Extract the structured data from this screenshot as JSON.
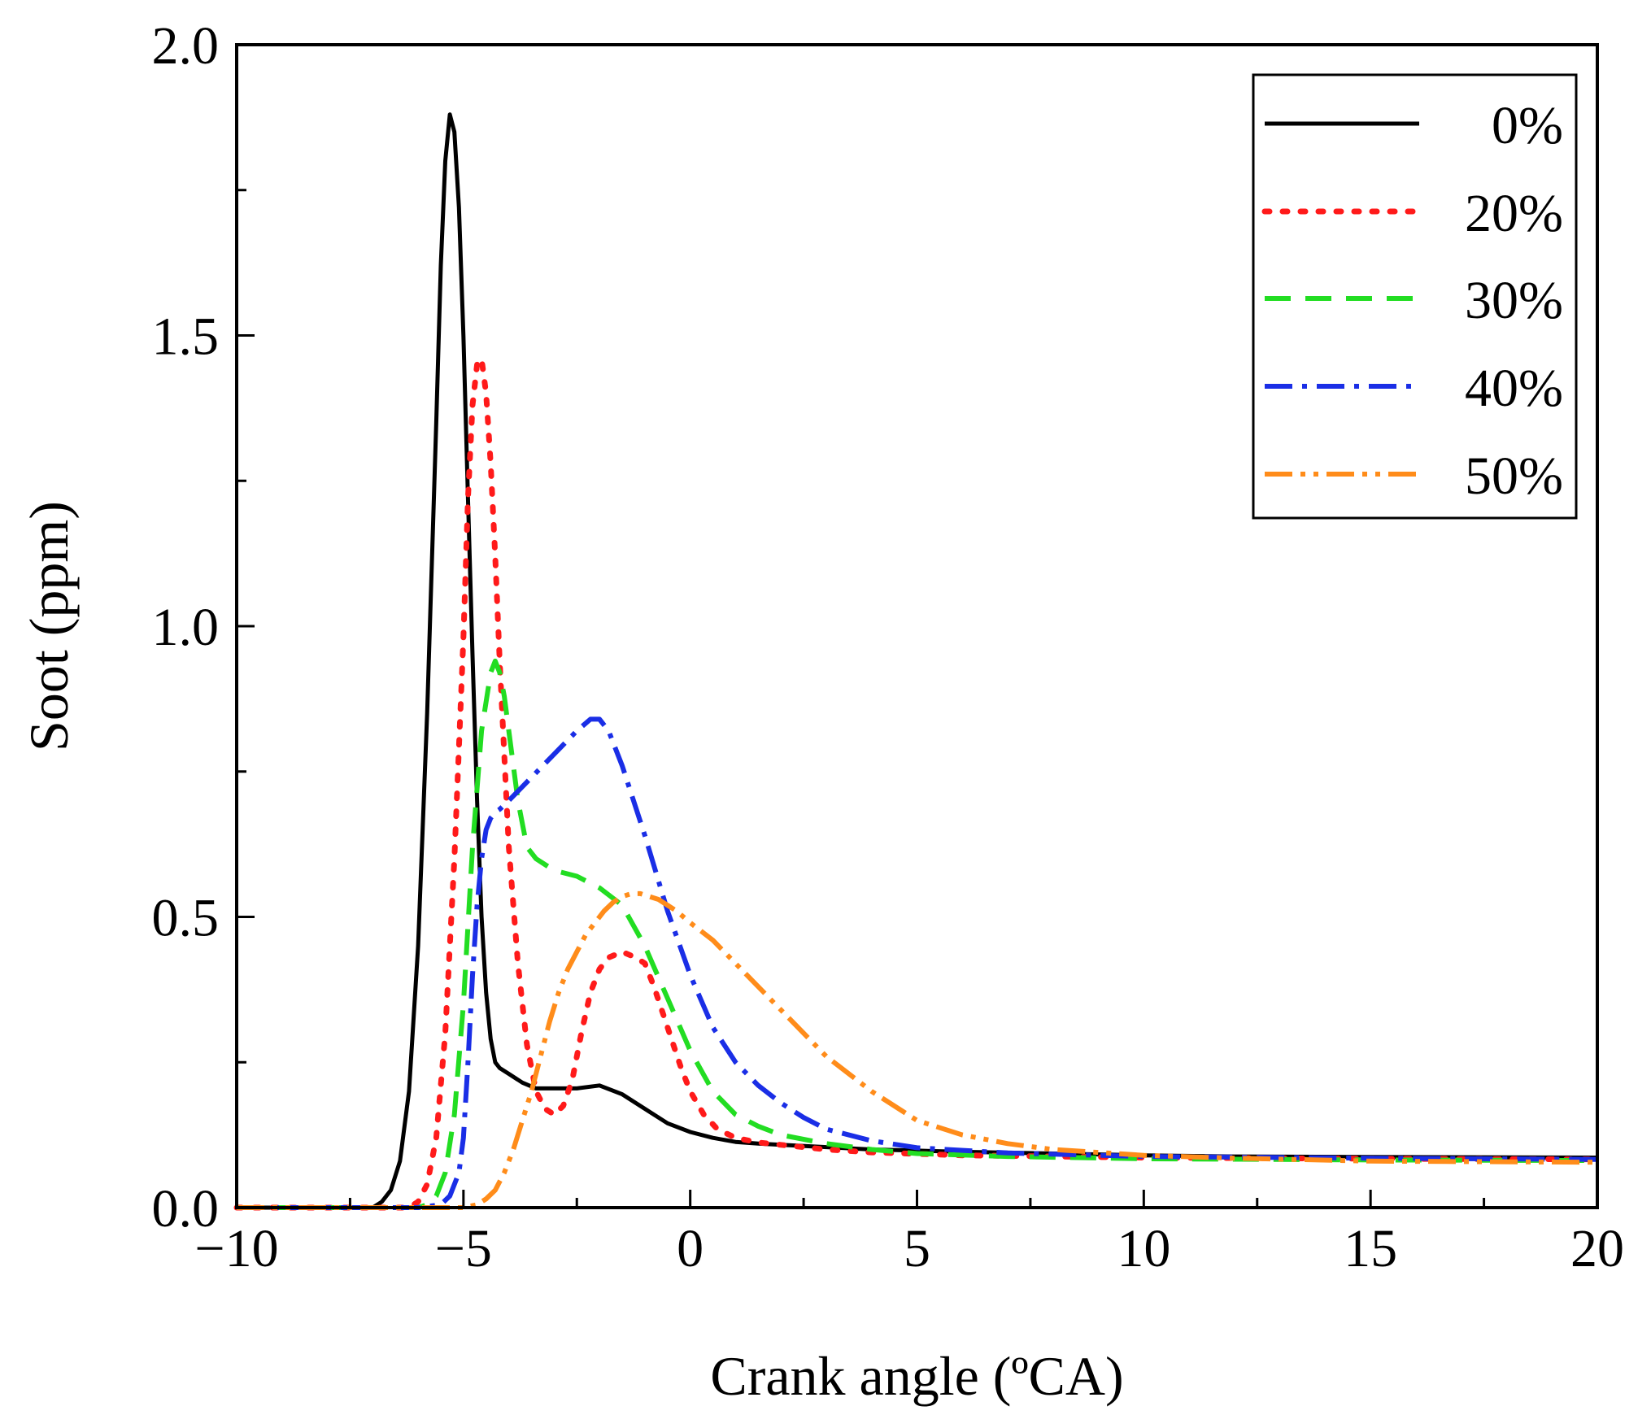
{
  "chart_data": {
    "type": "line",
    "title": "",
    "xlabel": "Crank angle (ºCA)",
    "ylabel": "Soot (ppm)",
    "xlim": [
      -10,
      20
    ],
    "ylim": [
      0.0,
      2.0
    ],
    "x_ticks": [
      -10,
      -5,
      0,
      5,
      10,
      15,
      20
    ],
    "x_tick_labels": [
      "−10",
      "−5",
      "0",
      "5",
      "10",
      "15",
      "20"
    ],
    "y_ticks": [
      0.0,
      0.5,
      1.0,
      1.5,
      2.0
    ],
    "y_tick_labels": [
      "0.0",
      "0.5",
      "1.0",
      "1.5",
      "2.0"
    ],
    "grid": false,
    "legend_position": "top-right",
    "series": [
      {
        "name": "0%",
        "color": "#000000",
        "dash": "solid",
        "x": [
          -10,
          -7.5,
          -7,
          -6.8,
          -6.6,
          -6.4,
          -6.2,
          -6.0,
          -5.8,
          -5.6,
          -5.5,
          -5.4,
          -5.3,
          -5.2,
          -5.1,
          -5.0,
          -4.9,
          -4.8,
          -4.7,
          -4.6,
          -4.5,
          -4.4,
          -4.3,
          -4.2,
          -4.0,
          -3.7,
          -3.4,
          -3.0,
          -2.5,
          -2.0,
          -1.5,
          -1.0,
          -0.5,
          0,
          0.5,
          1,
          1.5,
          2,
          3,
          4,
          5,
          6,
          8,
          10,
          12,
          15,
          20
        ],
        "values": [
          0.0,
          0.0,
          0.0,
          0.01,
          0.03,
          0.08,
          0.2,
          0.45,
          0.85,
          1.35,
          1.62,
          1.8,
          1.88,
          1.85,
          1.72,
          1.5,
          1.22,
          0.95,
          0.7,
          0.5,
          0.37,
          0.29,
          0.25,
          0.24,
          0.23,
          0.215,
          0.205,
          0.205,
          0.205,
          0.21,
          0.195,
          0.17,
          0.145,
          0.13,
          0.12,
          0.113,
          0.11,
          0.108,
          0.104,
          0.1,
          0.098,
          0.096,
          0.093,
          0.09,
          0.088,
          0.087,
          0.086
        ]
      },
      {
        "name": "20%",
        "color": "#ff1a1a",
        "dash": "dotted",
        "x": [
          -10,
          -6.5,
          -6.2,
          -6.0,
          -5.8,
          -5.6,
          -5.4,
          -5.2,
          -5.0,
          -4.9,
          -4.8,
          -4.7,
          -4.6,
          -4.5,
          -4.4,
          -4.3,
          -4.2,
          -4.1,
          -4.0,
          -3.8,
          -3.6,
          -3.4,
          -3.2,
          -3.0,
          -2.8,
          -2.6,
          -2.4,
          -2.2,
          -2.0,
          -1.8,
          -1.5,
          -1.2,
          -1.0,
          -0.8,
          -0.5,
          -0.2,
          0,
          0.3,
          0.6,
          1.0,
          1.5,
          2,
          3,
          4,
          6,
          10,
          15,
          20
        ],
        "values": [
          0.0,
          0.0,
          0.0,
          0.01,
          0.04,
          0.12,
          0.3,
          0.6,
          0.98,
          1.22,
          1.38,
          1.45,
          1.46,
          1.4,
          1.28,
          1.12,
          0.94,
          0.78,
          0.62,
          0.42,
          0.28,
          0.2,
          0.17,
          0.16,
          0.175,
          0.22,
          0.3,
          0.37,
          0.41,
          0.43,
          0.44,
          0.43,
          0.42,
          0.38,
          0.31,
          0.24,
          0.2,
          0.16,
          0.135,
          0.12,
          0.112,
          0.108,
          0.1,
          0.095,
          0.09,
          0.086,
          0.084,
          0.083
        ]
      },
      {
        "name": "30%",
        "color": "#22dd22",
        "dash": "dashed",
        "x": [
          -10,
          -6.0,
          -5.8,
          -5.6,
          -5.4,
          -5.2,
          -5.0,
          -4.8,
          -4.6,
          -4.4,
          -4.3,
          -4.2,
          -4.1,
          -4.0,
          -3.9,
          -3.8,
          -3.6,
          -3.4,
          -3.2,
          -3.0,
          -2.5,
          -2.0,
          -1.5,
          -1.0,
          -0.5,
          0,
          0.5,
          1.0,
          1.5,
          2.0,
          3.0,
          4,
          5,
          7,
          10,
          15,
          20
        ],
        "values": [
          0.0,
          0.0,
          0.005,
          0.02,
          0.06,
          0.16,
          0.35,
          0.62,
          0.82,
          0.92,
          0.94,
          0.92,
          0.88,
          0.82,
          0.76,
          0.7,
          0.62,
          0.6,
          0.59,
          0.58,
          0.57,
          0.55,
          0.52,
          0.45,
          0.36,
          0.27,
          0.2,
          0.16,
          0.14,
          0.125,
          0.11,
          0.1,
          0.093,
          0.088,
          0.084,
          0.082,
          0.081
        ]
      },
      {
        "name": "40%",
        "color": "#1a2ee6",
        "dash": "dashdot",
        "x": [
          -10,
          -6.0,
          -5.5,
          -5.3,
          -5.1,
          -5.0,
          -4.9,
          -4.8,
          -4.7,
          -4.6,
          -4.5,
          -4.4,
          -4.3,
          -4.2,
          -4.0,
          -3.5,
          -3.0,
          -2.5,
          -2.2,
          -2.0,
          -1.8,
          -1.5,
          -1.0,
          -0.5,
          0,
          0.5,
          1.0,
          1.5,
          2.0,
          2.5,
          3.0,
          4,
          5,
          7,
          10,
          15,
          20
        ],
        "values": [
          0.0,
          0.0,
          0.005,
          0.02,
          0.06,
          0.12,
          0.25,
          0.4,
          0.52,
          0.6,
          0.65,
          0.67,
          0.68,
          0.685,
          0.7,
          0.74,
          0.78,
          0.82,
          0.84,
          0.84,
          0.82,
          0.76,
          0.64,
          0.51,
          0.4,
          0.31,
          0.25,
          0.21,
          0.18,
          0.155,
          0.135,
          0.115,
          0.103,
          0.094,
          0.088,
          0.085,
          0.083
        ]
      },
      {
        "name": "50%",
        "color": "#ff8c1a",
        "dash": "dashdotdot",
        "x": [
          -10,
          -5.0,
          -4.7,
          -4.5,
          -4.3,
          -4.1,
          -3.9,
          -3.7,
          -3.5,
          -3.3,
          -3.1,
          -2.9,
          -2.7,
          -2.5,
          -2.3,
          -2.1,
          -1.9,
          -1.7,
          -1.5,
          -1.3,
          -1.1,
          -0.9,
          -0.7,
          -0.5,
          -0.3,
          0,
          0.5,
          1.0,
          1.5,
          2.0,
          2.5,
          3.0,
          3.5,
          4.0,
          5.0,
          6.0,
          7.0,
          8.0,
          9.0,
          10,
          12,
          15,
          20
        ],
        "values": [
          0.0,
          0.0,
          0.005,
          0.015,
          0.03,
          0.06,
          0.1,
          0.15,
          0.2,
          0.26,
          0.32,
          0.37,
          0.41,
          0.44,
          0.47,
          0.49,
          0.51,
          0.525,
          0.535,
          0.54,
          0.54,
          0.535,
          0.53,
          0.52,
          0.51,
          0.49,
          0.46,
          0.42,
          0.38,
          0.34,
          0.3,
          0.26,
          0.23,
          0.2,
          0.15,
          0.125,
          0.11,
          0.1,
          0.095,
          0.09,
          0.085,
          0.08,
          0.078
        ]
      }
    ]
  }
}
